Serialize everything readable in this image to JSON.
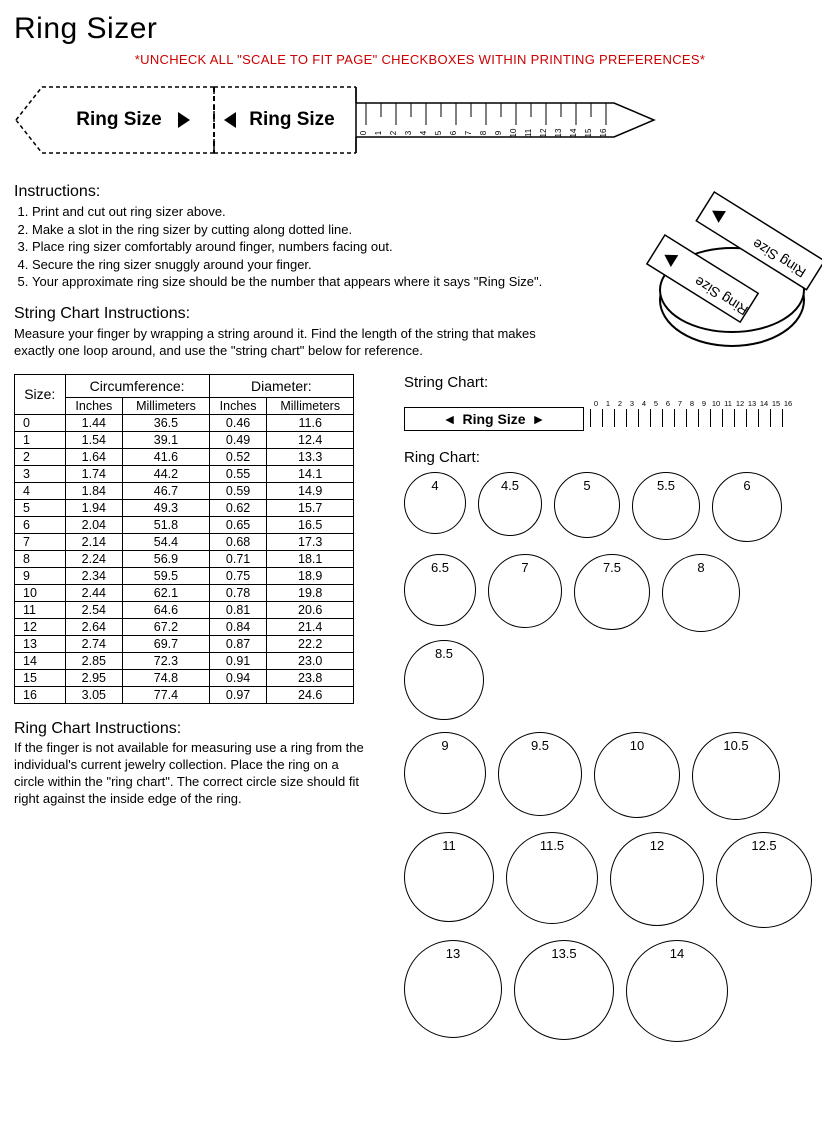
{
  "title": "Ring Sizer",
  "warning": "*UNCHECK ALL \"SCALE TO FIT PAGE\" CHECKBOXES WITHIN PRINTING PREFERENCES*",
  "strip": {
    "left_label": "Ring Size",
    "right_label": "Ring Size",
    "tick_labels": [
      "0",
      "1",
      "2",
      "3",
      "4",
      "5",
      "6",
      "7",
      "8",
      "9",
      "10",
      "11",
      "12",
      "13",
      "14",
      "15",
      "16"
    ]
  },
  "instructions": {
    "title": "Instructions:",
    "items": [
      "Print and cut out ring sizer above.",
      "Make a slot in the ring sizer by cutting along dotted line.",
      "Place ring sizer comfortably around finger, numbers facing out.",
      "Secure the ring sizer snuggly around your finger.",
      "Your approximate ring size should be the number that appears where it says \"Ring Size\"."
    ]
  },
  "string_instructions": {
    "title": "String Chart Instructions:",
    "text": "Measure your finger by wrapping a string around it. Find the length of the string that makes exactly one loop around, and use the \"string chart\" below for reference."
  },
  "table": {
    "headers": {
      "size": "Size:",
      "circumference": "Circumference:",
      "diameter": "Diameter:",
      "inches": "Inches",
      "mm": "Millimeters"
    },
    "rows": [
      {
        "size": "0",
        "c_in": "1.44",
        "c_mm": "36.5",
        "d_in": "0.46",
        "d_mm": "11.6"
      },
      {
        "size": "1",
        "c_in": "1.54",
        "c_mm": "39.1",
        "d_in": "0.49",
        "d_mm": "12.4"
      },
      {
        "size": "2",
        "c_in": "1.64",
        "c_mm": "41.6",
        "d_in": "0.52",
        "d_mm": "13.3"
      },
      {
        "size": "3",
        "c_in": "1.74",
        "c_mm": "44.2",
        "d_in": "0.55",
        "d_mm": "14.1"
      },
      {
        "size": "4",
        "c_in": "1.84",
        "c_mm": "46.7",
        "d_in": "0.59",
        "d_mm": "14.9"
      },
      {
        "size": "5",
        "c_in": "1.94",
        "c_mm": "49.3",
        "d_in": "0.62",
        "d_mm": "15.7"
      },
      {
        "size": "6",
        "c_in": "2.04",
        "c_mm": "51.8",
        "d_in": "0.65",
        "d_mm": "16.5"
      },
      {
        "size": "7",
        "c_in": "2.14",
        "c_mm": "54.4",
        "d_in": "0.68",
        "d_mm": "17.3"
      },
      {
        "size": "8",
        "c_in": "2.24",
        "c_mm": "56.9",
        "d_in": "0.71",
        "d_mm": "18.1"
      },
      {
        "size": "9",
        "c_in": "2.34",
        "c_mm": "59.5",
        "d_in": "0.75",
        "d_mm": "18.9"
      },
      {
        "size": "10",
        "c_in": "2.44",
        "c_mm": "62.1",
        "d_in": "0.78",
        "d_mm": "19.8"
      },
      {
        "size": "11",
        "c_in": "2.54",
        "c_mm": "64.6",
        "d_in": "0.81",
        "d_mm": "20.6"
      },
      {
        "size": "12",
        "c_in": "2.64",
        "c_mm": "67.2",
        "d_in": "0.84",
        "d_mm": "21.4"
      },
      {
        "size": "13",
        "c_in": "2.74",
        "c_mm": "69.7",
        "d_in": "0.87",
        "d_mm": "22.2"
      },
      {
        "size": "14",
        "c_in": "2.85",
        "c_mm": "72.3",
        "d_in": "0.91",
        "d_mm": "23.0"
      },
      {
        "size": "15",
        "c_in": "2.95",
        "c_mm": "74.8",
        "d_in": "0.94",
        "d_mm": "23.8"
      },
      {
        "size": "16",
        "c_in": "3.05",
        "c_mm": "77.4",
        "d_in": "0.97",
        "d_mm": "24.6"
      }
    ]
  },
  "ring_chart_instructions": {
    "title": "Ring Chart Instructions:",
    "text": "If the finger is not available for measuring use a ring from the individual's current jewelry collection. Place the ring on a circle within the \"ring chart\". The correct circle size should fit right against the inside edge of the ring."
  },
  "string_chart": {
    "title": "String Chart:",
    "bar_label": "Ring Size",
    "tick_labels": [
      "0",
      "1",
      "2",
      "3",
      "4",
      "5",
      "6",
      "7",
      "8",
      "9",
      "10",
      "11",
      "12",
      "13",
      "14",
      "15",
      "16"
    ]
  },
  "ring_chart": {
    "title": "Ring Chart:",
    "rows": [
      [
        {
          "label": "4",
          "d": 62
        },
        {
          "label": "4.5",
          "d": 64
        },
        {
          "label": "5",
          "d": 66
        },
        {
          "label": "5.5",
          "d": 68
        },
        {
          "label": "6",
          "d": 70
        }
      ],
      [
        {
          "label": "6.5",
          "d": 72
        },
        {
          "label": "7",
          "d": 74
        },
        {
          "label": "7.5",
          "d": 76
        },
        {
          "label": "8",
          "d": 78
        },
        {
          "label": "8.5",
          "d": 80
        }
      ],
      [
        {
          "label": "9",
          "d": 82
        },
        {
          "label": "9.5",
          "d": 84
        },
        {
          "label": "10",
          "d": 86
        },
        {
          "label": "10.5",
          "d": 88
        }
      ],
      [
        {
          "label": "11",
          "d": 90
        },
        {
          "label": "11.5",
          "d": 92
        },
        {
          "label": "12",
          "d": 94
        },
        {
          "label": "12.5",
          "d": 96
        }
      ],
      [
        {
          "label": "13",
          "d": 98
        },
        {
          "label": "13.5",
          "d": 100
        },
        {
          "label": "14",
          "d": 102
        }
      ]
    ]
  },
  "illustration": {
    "label_a": "Ring Size",
    "label_b": "Ring Size"
  },
  "colors": {
    "text": "#000000",
    "warning": "#cc0000",
    "border": "#000000",
    "bg": "#ffffff"
  }
}
